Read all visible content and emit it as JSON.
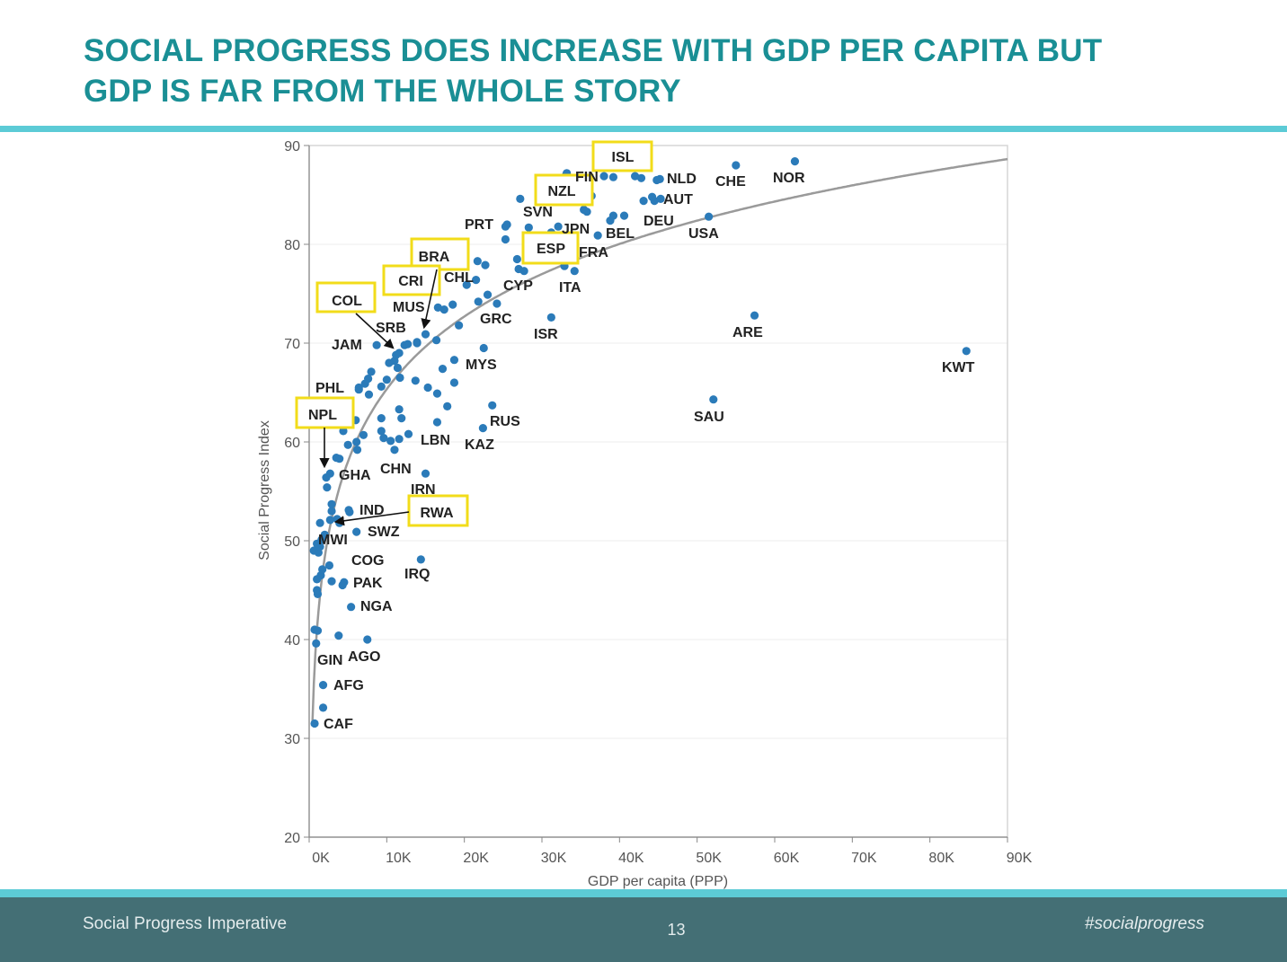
{
  "header": {
    "title_line1": "SOCIAL PROGRESS DOES INCREASE WITH GDP PER CAPITA BUT",
    "title_line2": "GDP IS FAR FROM THE WHOLE STORY"
  },
  "footer": {
    "left": "Social Progress Imperative",
    "page": "13",
    "right": "#socialprogress"
  },
  "colors": {
    "title": "#1a8f95",
    "rule": "#5ccbd6",
    "footer_bg": "#446f75",
    "point": "#2b7bb9",
    "highlight_box": "#f2dc1a",
    "trend": "#999999"
  },
  "chart_data": {
    "type": "scatter",
    "xlabel": "GDP per capita (PPP)",
    "ylabel": "Social Progress Index",
    "xlim": [
      0,
      90000
    ],
    "ylim": [
      20,
      90
    ],
    "x_ticks": [
      0,
      10000,
      20000,
      30000,
      40000,
      50000,
      60000,
      70000,
      80000,
      90000
    ],
    "x_tick_labels": [
      "0K",
      "10K",
      "20K",
      "30K",
      "40K",
      "50K",
      "60K",
      "70K",
      "80K",
      "90K"
    ],
    "y_ticks": [
      20,
      30,
      40,
      50,
      60,
      70,
      80,
      90
    ],
    "y_tick_labels": [
      "20",
      "30",
      "40",
      "50",
      "60",
      "70",
      "80",
      "90"
    ],
    "grid": true,
    "trendline": "logarithmic",
    "labeled_points": [
      {
        "code": "ISL",
        "x": 41700,
        "y": 88.4,
        "highlight": true
      },
      {
        "code": "FIN",
        "x": 38000,
        "y": 86.9,
        "highlight": false
      },
      {
        "code": "NLD",
        "x": 44800,
        "y": 86.5,
        "highlight": false
      },
      {
        "code": "CHE",
        "x": 55000,
        "y": 88.0,
        "highlight": false
      },
      {
        "code": "NOR",
        "x": 62600,
        "y": 88.4,
        "highlight": false
      },
      {
        "code": "NZL",
        "x": 33100,
        "y": 87.0,
        "highlight": true
      },
      {
        "code": "AUT",
        "x": 44200,
        "y": 84.8,
        "highlight": false
      },
      {
        "code": "SVN",
        "x": 27200,
        "y": 84.6,
        "highlight": false
      },
      {
        "code": "DEU",
        "x": 43100,
        "y": 84.4,
        "highlight": false
      },
      {
        "code": "PRT",
        "x": 25500,
        "y": 82.0,
        "highlight": false
      },
      {
        "code": "JPN",
        "x": 35400,
        "y": 83.5,
        "highlight": false
      },
      {
        "code": "BEL",
        "x": 40600,
        "y": 82.9,
        "highlight": false
      },
      {
        "code": "USA",
        "x": 51500,
        "y": 82.8,
        "highlight": false
      },
      {
        "code": "ESP",
        "x": 31200,
        "y": 81.2,
        "highlight": true
      },
      {
        "code": "FRA",
        "x": 37200,
        "y": 80.9,
        "highlight": false
      },
      {
        "code": "BRA",
        "x": 15000,
        "y": 70.9,
        "highlight": true
      },
      {
        "code": "CHL",
        "x": 19100,
        "y": 79.1,
        "highlight": false
      },
      {
        "code": "CRI",
        "x": 13900,
        "y": 70.1,
        "highlight": true
      },
      {
        "code": "CYP",
        "x": 27000,
        "y": 77.5,
        "highlight": false
      },
      {
        "code": "ITA",
        "x": 34200,
        "y": 77.3,
        "highlight": false
      },
      {
        "code": "COL",
        "x": 11200,
        "y": 68.8,
        "highlight": true
      },
      {
        "code": "MUS",
        "x": 16600,
        "y": 73.6,
        "highlight": false
      },
      {
        "code": "GRC",
        "x": 24200,
        "y": 74.0,
        "highlight": false
      },
      {
        "code": "SRB",
        "x": 12700,
        "y": 69.9,
        "highlight": false
      },
      {
        "code": "ISR",
        "x": 31200,
        "y": 72.6,
        "highlight": false
      },
      {
        "code": "ARE",
        "x": 57400,
        "y": 72.8,
        "highlight": false
      },
      {
        "code": "JAM",
        "x": 8700,
        "y": 69.8,
        "highlight": false
      },
      {
        "code": "KWT",
        "x": 84700,
        "y": 69.2,
        "highlight": false
      },
      {
        "code": "MYS",
        "x": 22500,
        "y": 69.5,
        "highlight": false
      },
      {
        "code": "PHL",
        "x": 6400,
        "y": 65.5,
        "highlight": false
      },
      {
        "code": "NPL",
        "x": 2200,
        "y": 56.4,
        "highlight": true
      },
      {
        "code": "SAU",
        "x": 52100,
        "y": 64.3,
        "highlight": false
      },
      {
        "code": "RUS",
        "x": 23600,
        "y": 63.7,
        "highlight": false
      },
      {
        "code": "LBN",
        "x": 16500,
        "y": 62.0,
        "highlight": false
      },
      {
        "code": "KAZ",
        "x": 22400,
        "y": 61.4,
        "highlight": false
      },
      {
        "code": "GHA",
        "x": 3900,
        "y": 58.3,
        "highlight": false
      },
      {
        "code": "CHN",
        "x": 11600,
        "y": 60.3,
        "highlight": false
      },
      {
        "code": "IRN",
        "x": 15000,
        "y": 56.8,
        "highlight": false
      },
      {
        "code": "IND",
        "x": 5200,
        "y": 52.9,
        "highlight": false
      },
      {
        "code": "RWA",
        "x": 3900,
        "y": 51.8,
        "highlight": true
      },
      {
        "code": "MWI",
        "x": 1400,
        "y": 49.4,
        "highlight": false
      },
      {
        "code": "SWZ",
        "x": 6100,
        "y": 50.9,
        "highlight": false
      },
      {
        "code": "COG",
        "x": 4500,
        "y": 45.8,
        "highlight": false
      },
      {
        "code": "PAK",
        "x": 4300,
        "y": 45.5,
        "highlight": false
      },
      {
        "code": "IRQ",
        "x": 14400,
        "y": 48.1,
        "highlight": false
      },
      {
        "code": "NGA",
        "x": 5400,
        "y": 43.3,
        "highlight": false
      },
      {
        "code": "GIN",
        "x": 1100,
        "y": 40.9,
        "highlight": false
      },
      {
        "code": "AGO",
        "x": 7500,
        "y": 40.0,
        "highlight": false
      },
      {
        "code": "AFG",
        "x": 1800,
        "y": 35.4,
        "highlight": false
      },
      {
        "code": "CAF",
        "x": 1800,
        "y": 33.1,
        "highlight": false
      }
    ],
    "unlabeled_points": [
      [
        33200,
        87.2
      ],
      [
        39200,
        86.8
      ],
      [
        42000,
        86.9
      ],
      [
        42800,
        86.7
      ],
      [
        45200,
        86.6
      ],
      [
        44500,
        84.4
      ],
      [
        45300,
        84.6
      ],
      [
        36400,
        84.9
      ],
      [
        35800,
        83.3
      ],
      [
        38800,
        82.4
      ],
      [
        39200,
        82.9
      ],
      [
        25300,
        81.8
      ],
      [
        28300,
        81.7
      ],
      [
        32100,
        81.8
      ],
      [
        25300,
        80.5
      ],
      [
        26800,
        78.5
      ],
      [
        28200,
        79.2
      ],
      [
        21700,
        78.3
      ],
      [
        22700,
        77.9
      ],
      [
        27700,
        77.3
      ],
      [
        32900,
        77.8
      ],
      [
        20300,
        75.9
      ],
      [
        21500,
        76.4
      ],
      [
        18500,
        73.9
      ],
      [
        21800,
        74.2
      ],
      [
        23000,
        74.9
      ],
      [
        17400,
        73.4
      ],
      [
        19300,
        71.8
      ],
      [
        16400,
        70.3
      ],
      [
        13900,
        70.0
      ],
      [
        12300,
        69.8
      ],
      [
        11600,
        69.0
      ],
      [
        11000,
        68.2
      ],
      [
        10300,
        68.0
      ],
      [
        11400,
        67.5
      ],
      [
        11700,
        66.5
      ],
      [
        10000,
        66.3
      ],
      [
        8000,
        67.1
      ],
      [
        7600,
        66.4
      ],
      [
        7200,
        65.9
      ],
      [
        6400,
        65.3
      ],
      [
        9300,
        65.6
      ],
      [
        13700,
        66.2
      ],
      [
        15300,
        65.5
      ],
      [
        17200,
        67.4
      ],
      [
        18700,
        68.3
      ],
      [
        16500,
        64.9
      ],
      [
        18700,
        66.0
      ],
      [
        17800,
        63.6
      ],
      [
        7700,
        64.8
      ],
      [
        4500,
        63.3
      ],
      [
        4300,
        62.2
      ],
      [
        4400,
        61.1
      ],
      [
        6000,
        62.2
      ],
      [
        9300,
        62.4
      ],
      [
        11600,
        63.3
      ],
      [
        11900,
        62.4
      ],
      [
        9300,
        61.1
      ],
      [
        9600,
        60.4
      ],
      [
        10500,
        60.1
      ],
      [
        12800,
        60.8
      ],
      [
        11000,
        59.2
      ],
      [
        7000,
        60.7
      ],
      [
        6100,
        60.0
      ],
      [
        5000,
        59.7
      ],
      [
        6200,
        59.2
      ],
      [
        3500,
        58.4
      ],
      [
        2700,
        56.8
      ],
      [
        2300,
        55.4
      ],
      [
        2900,
        53.7
      ],
      [
        2900,
        53.0
      ],
      [
        5100,
        53.1
      ],
      [
        3600,
        52.2
      ],
      [
        2700,
        52.1
      ],
      [
        1400,
        51.8
      ],
      [
        2000,
        50.6
      ],
      [
        1600,
        50.1
      ],
      [
        1000,
        49.7
      ],
      [
        600,
        49.0
      ],
      [
        1200,
        48.8
      ],
      [
        1700,
        47.1
      ],
      [
        2600,
        47.5
      ],
      [
        1500,
        46.5
      ],
      [
        1000,
        46.1
      ],
      [
        2900,
        45.9
      ],
      [
        1000,
        45.0
      ],
      [
        1100,
        44.6
      ],
      [
        700,
        41.0
      ],
      [
        3800,
        40.4
      ],
      [
        900,
        39.6
      ],
      [
        700,
        31.5
      ]
    ],
    "highlight_boxes": [
      "ISL",
      "NZL",
      "ESP",
      "BRA",
      "CRI",
      "COL",
      "NPL",
      "RWA"
    ]
  }
}
